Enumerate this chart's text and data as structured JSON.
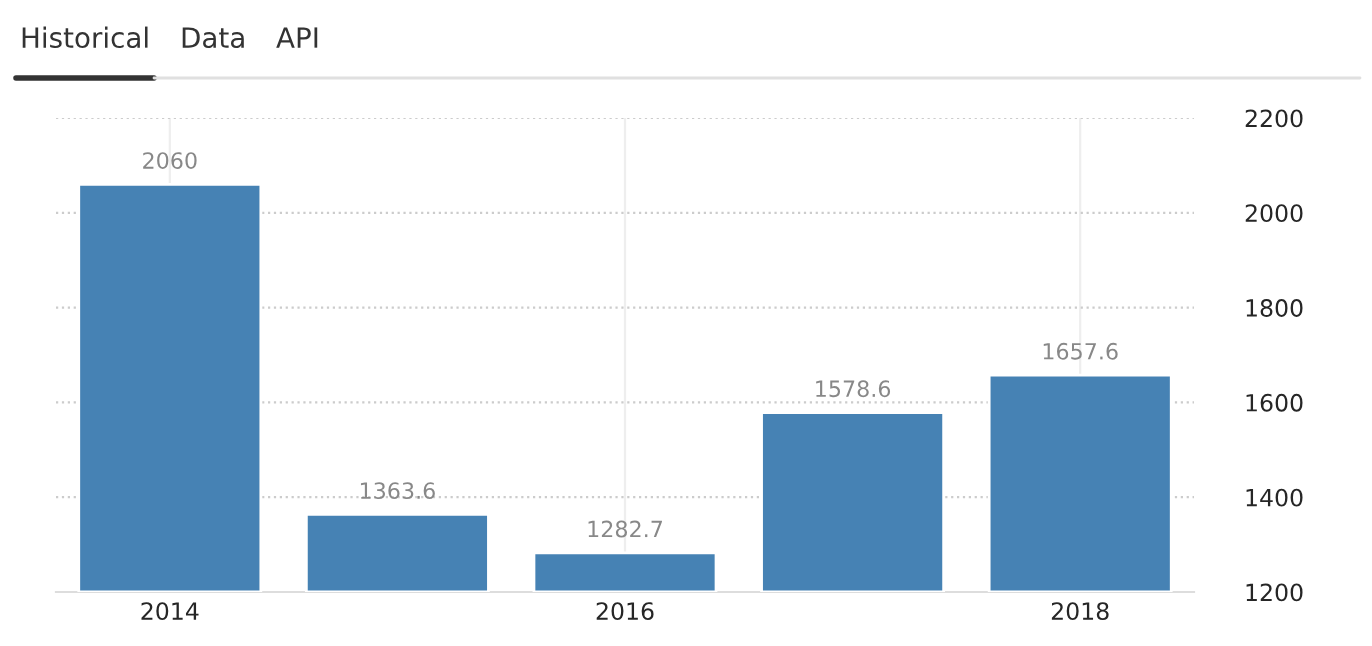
{
  "chart_data": {
    "type": "bar",
    "categories": [
      "2014",
      null,
      "2016",
      null,
      "2018"
    ],
    "values": [
      2060,
      1363.6,
      1282.7,
      1578.6,
      1657.6
    ],
    "color": "#4682b4",
    "ylim": [
      1200,
      2200
    ],
    "yticks": [
      1200,
      1400,
      1600,
      1800,
      2000,
      2200
    ],
    "grid": true,
    "data_labels": true,
    "annotations": [
      "Historical",
      "Data",
      "API"
    ]
  }
}
